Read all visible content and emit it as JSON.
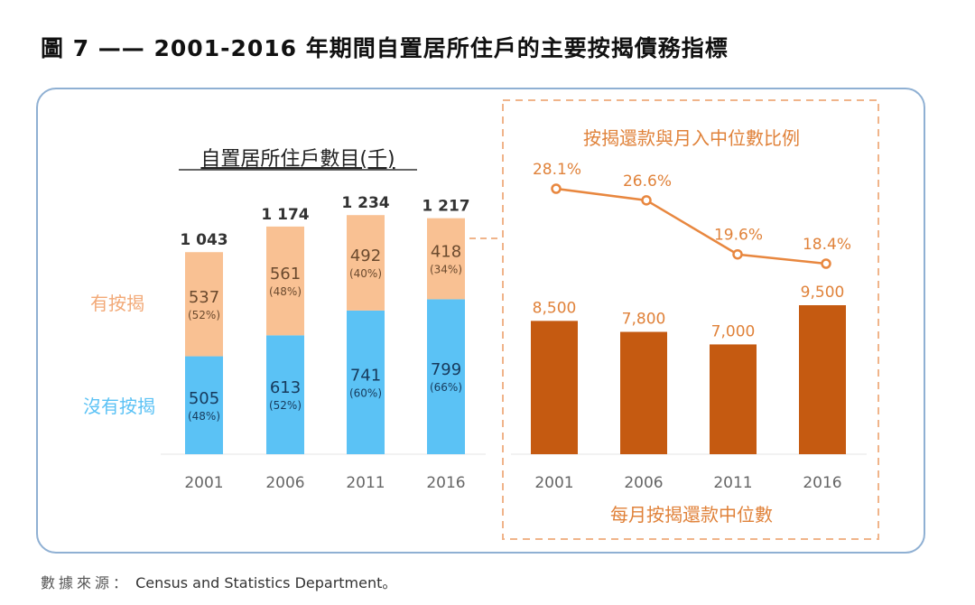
{
  "figure": {
    "title": "圖 7 —— 2001-2016 年期間自置居所住戶的主要按揭債務指標",
    "source_label": "數據來源：",
    "source_text": "Census and Statistics Department。"
  },
  "colors": {
    "with_mortgage": "#f9c193",
    "without_mortgage": "#5bc2f5",
    "repayment_bar": "#c55a11",
    "ratio_line": "#e8873f",
    "accent_text": "#e0823a",
    "with_mortgage_label": "#f2a977",
    "without_mortgage_label": "#5bc2f5",
    "outer_border": "#8fb0d3",
    "dashed_border": "#f0b48a"
  },
  "chart_data": [
    {
      "type": "bar",
      "stacked": true,
      "title": "自置居所住戶數目(千)",
      "categories": [
        "2001",
        "2006",
        "2011",
        "2016"
      ],
      "series": [
        {
          "name": "沒有按揭",
          "values": [
            505,
            613,
            741,
            799
          ],
          "percent_labels": [
            "(48%)",
            "(52%)",
            "(60%)",
            "(66%)"
          ]
        },
        {
          "name": "有按揭",
          "values": [
            537,
            561,
            492,
            418
          ],
          "percent_labels": [
            "(52%)",
            "(48%)",
            "(40%)",
            "(34%)"
          ]
        }
      ],
      "totals": [
        1043,
        1174,
        1234,
        1217
      ],
      "total_labels": [
        "1 043",
        "1 174",
        "1 234",
        "1 217"
      ],
      "value_labels": {
        "without": [
          "505",
          "613",
          "741",
          "799"
        ],
        "with": [
          "537",
          "561",
          "492",
          "418"
        ]
      },
      "legend": [
        "有按揭",
        "沒有按揭"
      ],
      "legend_placement": "left",
      "xlabel": "",
      "ylabel": "",
      "ylim": [
        0,
        1234
      ],
      "grid": false
    },
    {
      "type": "line",
      "title": "按揭還款與月入中位數比例",
      "categories": [
        "2001",
        "2006",
        "2011",
        "2016"
      ],
      "values": [
        28.1,
        26.6,
        19.6,
        18.4
      ],
      "value_labels": [
        "28.1%",
        "26.6%",
        "19.6%",
        "18.4%"
      ],
      "unit": "%",
      "ylim": [
        18.4,
        28.1
      ],
      "grid": false
    },
    {
      "type": "bar",
      "title": "每月按揭還款中位數",
      "categories": [
        "2001",
        "2006",
        "2011",
        "2016"
      ],
      "values": [
        8500,
        7800,
        7000,
        9500
      ],
      "value_labels": [
        "8,500",
        "7,800",
        "7,000",
        "9,500"
      ],
      "xlabel": "每月按揭還款中位數",
      "ylim": [
        0,
        9500
      ],
      "grid": false
    }
  ]
}
